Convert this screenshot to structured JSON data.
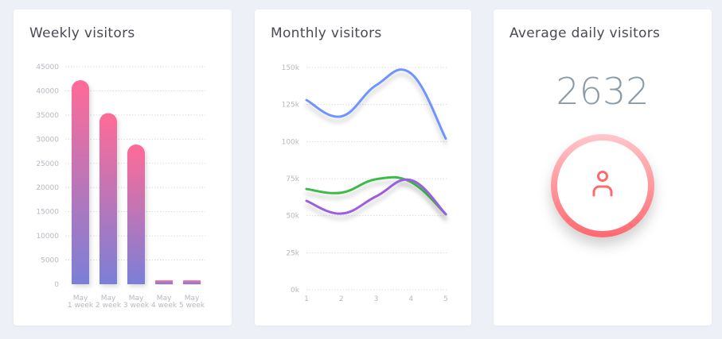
{
  "weekly": {
    "title": "Weekly visitors",
    "chart_data": {
      "type": "bar",
      "title": "Weekly visitors",
      "categories": [
        [
          "May",
          "1 week"
        ],
        [
          "May",
          "2 week"
        ],
        [
          "May",
          "3 week"
        ],
        [
          "May",
          "4 week"
        ],
        [
          "May",
          "5 week"
        ]
      ],
      "values": [
        42200,
        35400,
        28900,
        800,
        800
      ],
      "ylim": [
        0,
        45000
      ],
      "yticks": [
        "0",
        "5000",
        "10000",
        "15000",
        "20000",
        "25000",
        "30000",
        "35000",
        "40000",
        "45000"
      ],
      "grid": true,
      "colors": {
        "top": "#ff6b97",
        "bottom": "#7a7fd8"
      }
    }
  },
  "monthly": {
    "title": "Monthly visitors",
    "chart_data": {
      "type": "line",
      "title": "Monthly visitors",
      "x": [
        1,
        2,
        3,
        4,
        5
      ],
      "xticks": [
        "1",
        "2",
        "3",
        "4",
        "5"
      ],
      "yticks": [
        "0k",
        "25k",
        "50k",
        "75k",
        "100k",
        "125k",
        "150k"
      ],
      "ylim": [
        0,
        150000
      ],
      "grid": true,
      "series": [
        {
          "color": "#6f94ff",
          "values": [
            128000,
            117000,
            138000,
            146000,
            102000
          ]
        },
        {
          "color": "#3dbb4a",
          "values": [
            68000,
            65500,
            74600,
            72700,
            51000
          ]
        },
        {
          "color": "#9a5fe0",
          "values": [
            60000,
            51400,
            63000,
            74000,
            51000
          ]
        }
      ]
    }
  },
  "average": {
    "title": "Average daily visitors",
    "value": "2632",
    "icon": "user-icon",
    "accent": "#ff6b6b"
  }
}
